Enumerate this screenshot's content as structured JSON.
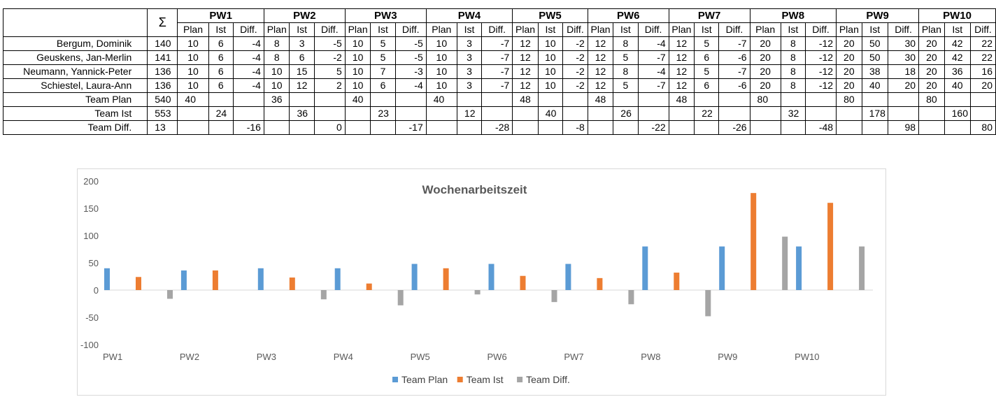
{
  "table": {
    "sigma": "Σ",
    "weeks": [
      "PW1",
      "PW2",
      "PW3",
      "PW4",
      "PW5",
      "PW6",
      "PW7",
      "PW8",
      "PW9",
      "PW10"
    ],
    "subheaders": [
      "Plan",
      "Ist",
      "Diff."
    ],
    "people": [
      {
        "name": "Bergum, Dominik",
        "sum": "140",
        "cells": [
          "10",
          "6",
          "-4",
          "8",
          "3",
          "-5",
          "10",
          "5",
          "-5",
          "10",
          "3",
          "-7",
          "12",
          "10",
          "-2",
          "12",
          "8",
          "-4",
          "12",
          "5",
          "-7",
          "20",
          "8",
          "-12",
          "20",
          "50",
          "30",
          "20",
          "42",
          "22"
        ]
      },
      {
        "name": "Geuskens, Jan-Merlin",
        "sum": "141",
        "cells": [
          "10",
          "6",
          "-4",
          "8",
          "6",
          "-2",
          "10",
          "5",
          "-5",
          "10",
          "3",
          "-7",
          "12",
          "10",
          "-2",
          "12",
          "5",
          "-7",
          "12",
          "6",
          "-6",
          "20",
          "8",
          "-12",
          "20",
          "50",
          "30",
          "20",
          "42",
          "22"
        ]
      },
      {
        "name": "Neumann, Yannick-Peter",
        "sum": "136",
        "cells": [
          "10",
          "6",
          "-4",
          "10",
          "15",
          "5",
          "10",
          "7",
          "-3",
          "10",
          "3",
          "-7",
          "12",
          "10",
          "-2",
          "12",
          "8",
          "-4",
          "12",
          "5",
          "-7",
          "20",
          "8",
          "-12",
          "20",
          "38",
          "18",
          "20",
          "36",
          "16"
        ]
      },
      {
        "name": "Schiestel, Laura-Ann",
        "sum": "136",
        "cells": [
          "10",
          "6",
          "-4",
          "10",
          "12",
          "2",
          "10",
          "6",
          "-4",
          "10",
          "3",
          "-7",
          "12",
          "10",
          "-2",
          "12",
          "5",
          "-7",
          "12",
          "6",
          "-6",
          "20",
          "8",
          "-12",
          "20",
          "40",
          "20",
          "20",
          "40",
          "20"
        ]
      }
    ],
    "team_plan": {
      "name": "Team Plan",
      "sum": "540",
      "values": [
        "40",
        "36",
        "40",
        "40",
        "48",
        "48",
        "48",
        "80",
        "80",
        "80"
      ]
    },
    "team_ist": {
      "name": "Team Ist",
      "sum": "553",
      "values": [
        "24",
        "36",
        "23",
        "12",
        "40",
        "26",
        "22",
        "32",
        "178",
        "160"
      ]
    },
    "team_diff": {
      "name": "Team Diff.",
      "sum": "13",
      "values": [
        "-16",
        "0",
        "-17",
        "-28",
        "-8",
        "-22",
        "-26",
        "-48",
        "98",
        "80"
      ]
    }
  },
  "chart_data": {
    "type": "bar",
    "title": "Wochenarbeitszeit",
    "categories": [
      "PW1",
      "PW2",
      "PW3",
      "PW4",
      "PW5",
      "PW6",
      "PW7",
      "PW8",
      "PW9",
      "PW10"
    ],
    "series": [
      {
        "name": "Team Plan",
        "color": "#5b9bd5",
        "values": [
          40,
          36,
          40,
          40,
          48,
          48,
          48,
          80,
          80,
          80
        ]
      },
      {
        "name": "Team Ist",
        "color": "#ed7d31",
        "values": [
          24,
          36,
          23,
          12,
          40,
          26,
          22,
          32,
          178,
          160
        ]
      },
      {
        "name": "Team Diff.",
        "color": "#a5a5a5",
        "values": [
          -16,
          0,
          -17,
          -28,
          -8,
          -22,
          -26,
          -48,
          98,
          80
        ]
      }
    ],
    "ylim": [
      -100,
      200
    ],
    "yticks": [
      -100,
      -50,
      0,
      50,
      100,
      150,
      200
    ],
    "grid": false,
    "legend": "bottom"
  }
}
